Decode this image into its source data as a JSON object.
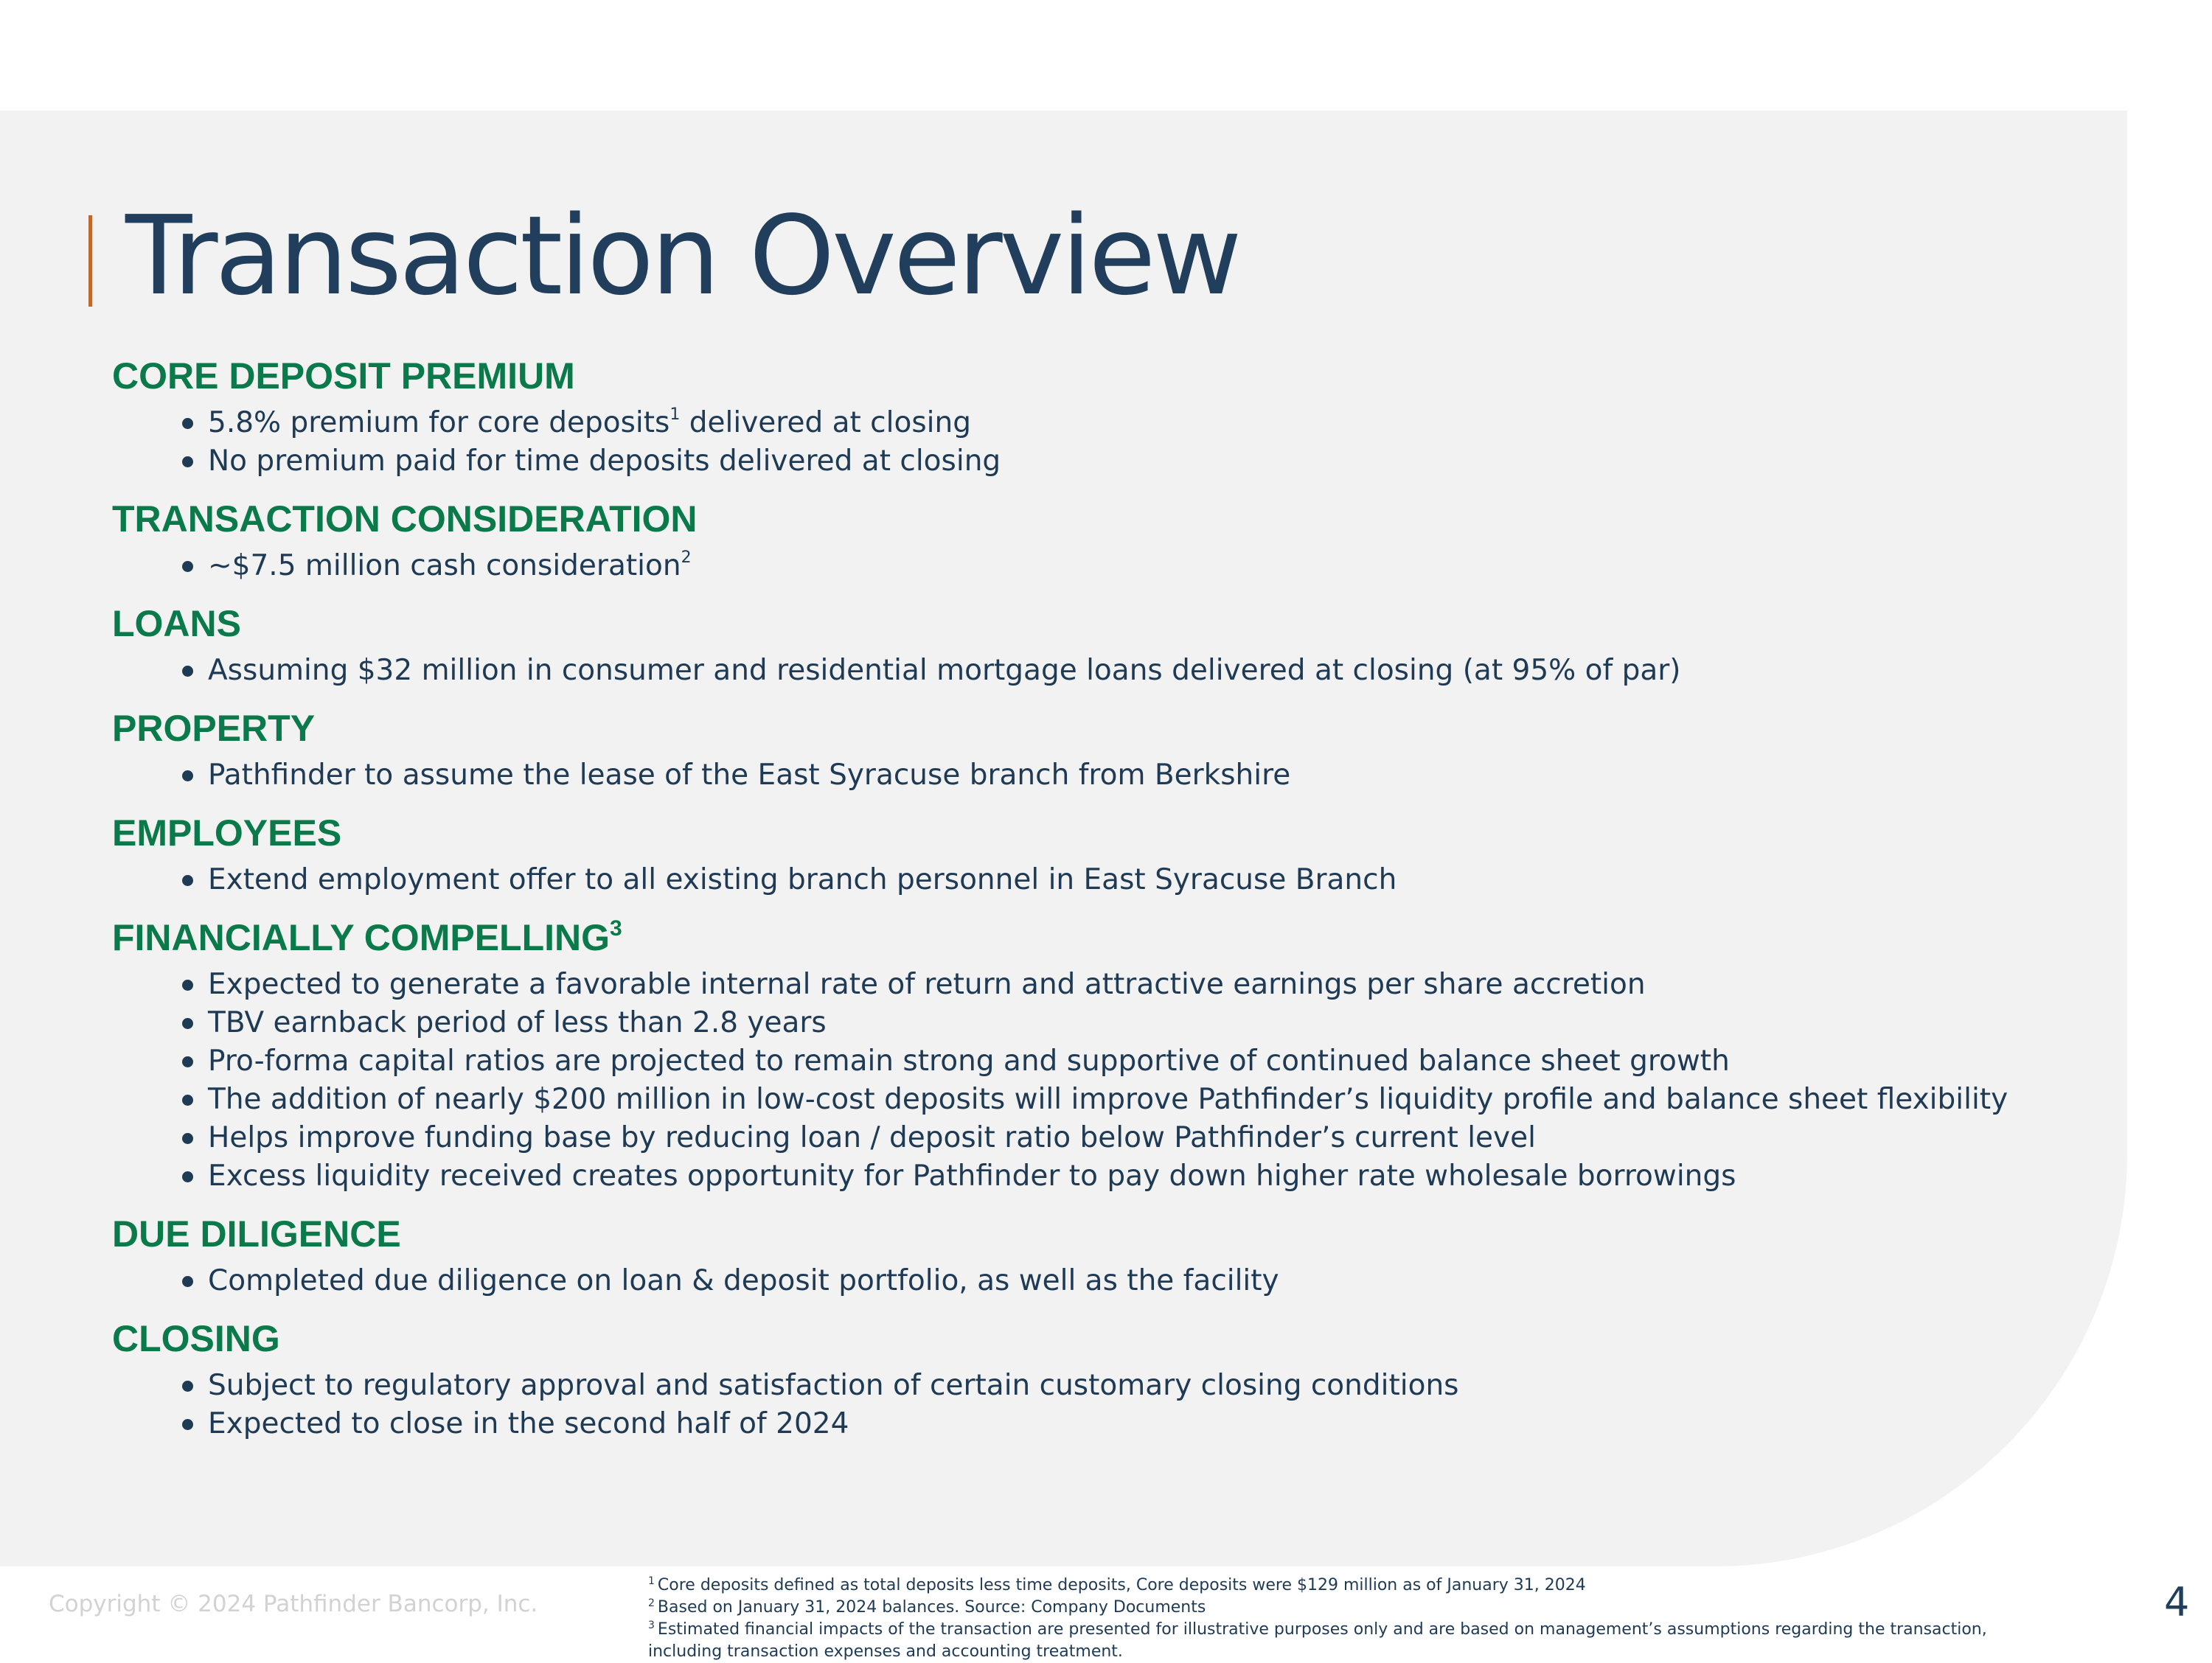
{
  "title": "Transaction Overview",
  "colors": {
    "heading": "#0b7a4b",
    "title": "#213f5c",
    "accent": "#c0692a",
    "panel": "#f2f2f2"
  },
  "sections": [
    {
      "heading": "CORE DEPOSIT PREMIUM",
      "bullets": [
        {
          "text": "5.8% premium for core deposits",
          "sup": "1",
          "after": " delivered at closing"
        },
        {
          "text": "No premium paid for time deposits delivered at closing"
        }
      ]
    },
    {
      "heading": "TRANSACTION CONSIDERATION",
      "bullets": [
        {
          "text": "~$7.5 million cash consideration",
          "sup": "2"
        }
      ]
    },
    {
      "heading": "LOANS",
      "bullets": [
        {
          "text": "Assuming $32 million in consumer and residential mortgage loans delivered at closing (at 95% of par)"
        }
      ]
    },
    {
      "heading": "PROPERTY",
      "bullets": [
        {
          "text": "Pathfinder to assume the lease of the East Syracuse branch from Berkshire"
        }
      ]
    },
    {
      "heading": "EMPLOYEES",
      "bullets": [
        {
          "text": "Extend employment offer to all existing branch personnel in East Syracuse Branch"
        }
      ]
    },
    {
      "heading": "FINANCIALLY COMPELLING",
      "heading_sup": "3",
      "bullets": [
        {
          "text": "Expected to generate a favorable internal rate of return and attractive earnings per share accretion"
        },
        {
          "text": "TBV earnback period of less than 2.8 years"
        },
        {
          "text": "Pro-forma capital ratios are projected to remain strong and supportive of continued balance sheet growth"
        },
        {
          "text": "The addition of nearly $200 million in low-cost deposits will improve Pathfinder’s liquidity profile and balance sheet flexibility"
        },
        {
          "text": "Helps improve funding base by reducing loan / deposit ratio below Pathfinder’s current level"
        },
        {
          "text": "Excess liquidity received creates opportunity for Pathfinder to pay down higher rate wholesale borrowings"
        }
      ]
    },
    {
      "heading": "DUE DILIGENCE",
      "bullets": [
        {
          "text": "Completed due diligence on loan & deposit portfolio, as well as the facility"
        }
      ]
    },
    {
      "heading": "CLOSING",
      "bullets": [
        {
          "text": "Subject to regulatory approval and satisfaction of certain customary closing conditions"
        },
        {
          "text": "Expected to close in the second half of 2024"
        }
      ]
    }
  ],
  "footer": {
    "copyright": "Copyright © 2024 Pathfinder Bancorp, Inc.",
    "footnotes": [
      {
        "mark": "1",
        "text": "Core deposits defined as total deposits less time deposits, Core deposits were $129 million as of January 31, 2024"
      },
      {
        "mark": "2",
        "text": "Based on January 31, 2024 balances. Source: Company Documents"
      },
      {
        "mark": "3",
        "text": "Estimated financial impacts of the transaction are presented for illustrative purposes only and are based on management’s assumptions regarding the transaction,"
      },
      {
        "mark": "",
        "text": "including transaction expenses and accounting treatment."
      }
    ],
    "page_number": "4"
  }
}
